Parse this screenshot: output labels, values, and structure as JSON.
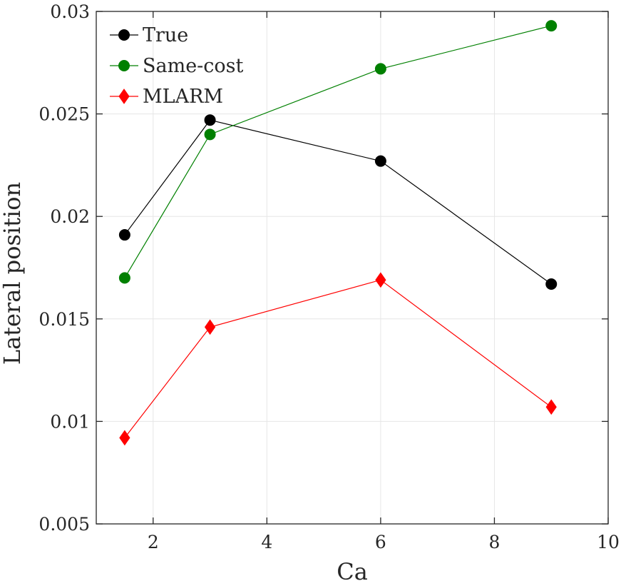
{
  "chart_data": {
    "type": "line",
    "xlabel": "Ca",
    "ylabel": "Lateral position",
    "xlim": [
      1,
      10
    ],
    "ylim": [
      0.005,
      0.03
    ],
    "x_ticks": [
      2,
      4,
      6,
      8,
      10
    ],
    "x_tick_labels": [
      "2",
      "4",
      "6",
      "8",
      "10"
    ],
    "y_ticks": [
      0.005,
      0.01,
      0.015,
      0.02,
      0.025,
      0.03
    ],
    "y_tick_labels": [
      "0.005",
      "0.01",
      "0.015",
      "0.02",
      "0.025",
      "0.03"
    ],
    "grid": true,
    "legend_position": "top-left",
    "x": [
      1.5,
      3,
      6,
      9
    ],
    "series": [
      {
        "name": "True",
        "values": [
          0.0191,
          0.0247,
          0.0227,
          0.0167
        ],
        "color": "#000000",
        "marker": "circle"
      },
      {
        "name": "Same-cost",
        "values": [
          0.017,
          0.024,
          0.0272,
          0.0293
        ],
        "color": "#008000",
        "marker": "circle"
      },
      {
        "name": "MLARM",
        "values": [
          0.0092,
          0.0146,
          0.0169,
          0.0107
        ],
        "color": "#ff0000",
        "marker": "diamond"
      }
    ]
  }
}
